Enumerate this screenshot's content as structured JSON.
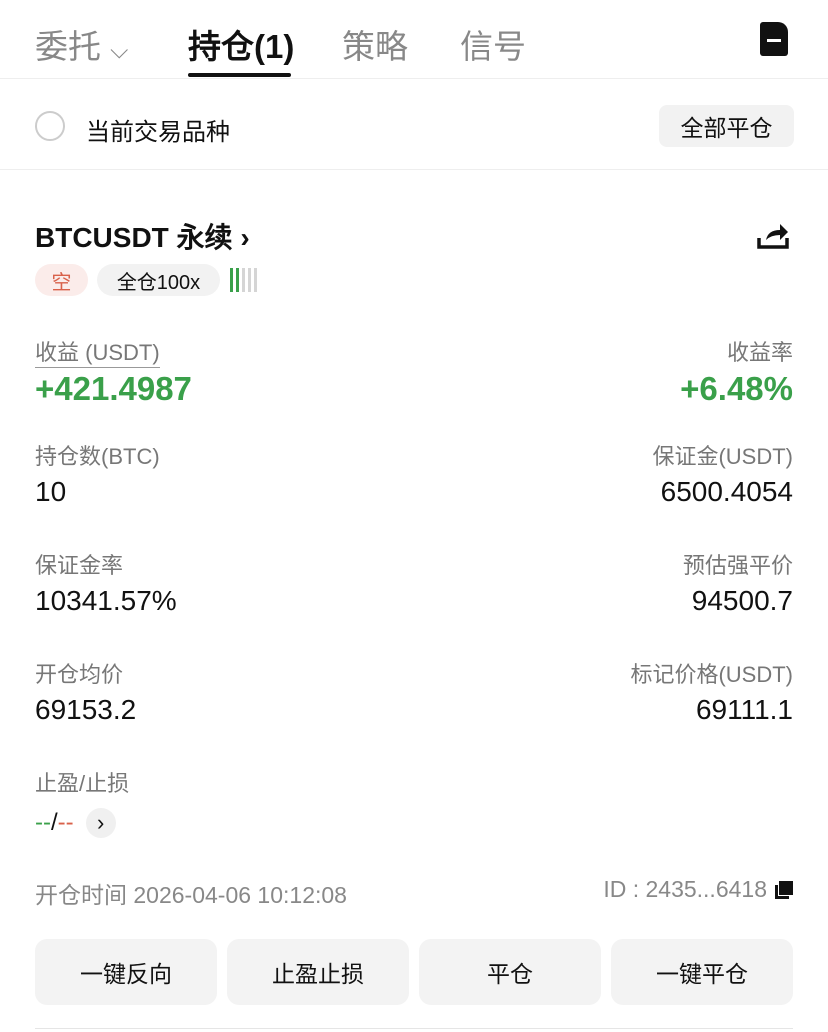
{
  "tabs": {
    "orders": "委托",
    "positions": "持仓(1)",
    "strategy": "策略",
    "signals": "信号"
  },
  "filter": {
    "current_symbol_label": "当前交易品种",
    "close_all": "全部平仓"
  },
  "position": {
    "symbol": "BTCUSDT 永续",
    "side": "空",
    "margin_mode": "全仓100x",
    "risk_level_bars": 2,
    "risk_level_total": 5,
    "pnl_label": "收益 (USDT)",
    "pnl_value": "+421.4987",
    "roe_label": "收益率",
    "roe_value": "+6.48%",
    "size_label": "持仓数(BTC)",
    "size_value": "10",
    "margin_label": "保证金(USDT)",
    "margin_value": "6500.4054",
    "margin_ratio_label": "保证金率",
    "margin_ratio_value": "10341.57%",
    "liq_label": "预估强平价",
    "liq_value": "94500.7",
    "entry_label": "开仓均价",
    "entry_value": "69153.2",
    "mark_label": "标记价格(USDT)",
    "mark_value": "69111.1",
    "tpsl_label": "止盈/止损",
    "tp_value": "--",
    "slash": "/",
    "sl_value": "--",
    "open_time": "开仓时间 2026-04-06 10:12:08",
    "id": "ID : 2435...6418"
  },
  "actions": {
    "reverse": "一键反向",
    "tpsl": "止盈止损",
    "close": "平仓",
    "quick_close": "一键平仓"
  },
  "colors": {
    "green": "#3aa04a",
    "red": "#d9614a"
  }
}
